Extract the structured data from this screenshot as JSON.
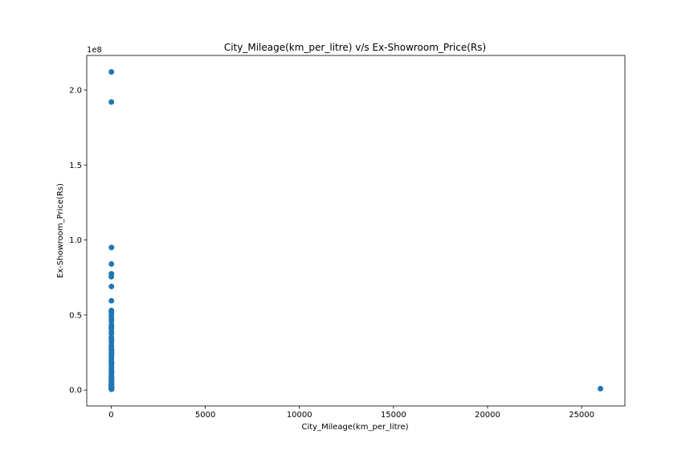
{
  "chart_data": {
    "type": "scatter",
    "title": "City_Mileage(km_per_litre) v/s Ex-Showroom_Price(Rs)",
    "xlabel": "City_Mileage(km_per_litre)",
    "ylabel": "Ex-Showroom_Price(Rs)",
    "y_offset_text": "1e8",
    "xlim": [
      -1300,
      27300
    ],
    "ylim": [
      -10600000,
      223000000
    ],
    "xticks": [
      0,
      5000,
      10000,
      15000,
      20000,
      25000
    ],
    "xtick_labels": [
      "0",
      "5000",
      "10000",
      "15000",
      "20000",
      "25000"
    ],
    "yticks": [
      0,
      50000000,
      100000000,
      150000000,
      200000000
    ],
    "ytick_labels": [
      "0.0",
      "0.5",
      "1.0",
      "1.5",
      "2.0"
    ],
    "grid": false,
    "legend": "none",
    "marker_color": "#1f77b4",
    "points": {
      "x": [
        10,
        9,
        15,
        12,
        11,
        8,
        14,
        13,
        10,
        9,
        12,
        11,
        15,
        13,
        14,
        12,
        10,
        11,
        12,
        9,
        13,
        14,
        11,
        10,
        12,
        15,
        13,
        11,
        10,
        9,
        12,
        14,
        13,
        11,
        10,
        12,
        9,
        14,
        13,
        12,
        11,
        10,
        9,
        12,
        13,
        14,
        11,
        10,
        12,
        13,
        26000,
        16,
        18,
        20,
        22,
        17,
        19,
        21,
        16,
        18,
        20,
        17,
        19,
        16
      ],
      "y": [
        212000000,
        192000000,
        95000000,
        84000000,
        77500000,
        75500000,
        69000000,
        59500000,
        53000000,
        52500000,
        51500000,
        49500000,
        47500000,
        46000000,
        43500000,
        42000000,
        41000000,
        39000000,
        37500000,
        35000000,
        33500000,
        32000000,
        29500000,
        28000000,
        26500000,
        25000000,
        23500000,
        22000000,
        20500000,
        19000000,
        17500000,
        16000000,
        14500000,
        13000000,
        11500000,
        10000000,
        8500000,
        7500000,
        6500000,
        5500000,
        4500000,
        3800000,
        3000000,
        2500000,
        2000000,
        1500000,
        1200000,
        900000,
        700000,
        500000,
        900000,
        27000000,
        24000000,
        18000000,
        12000000,
        9000000,
        6000000,
        4000000,
        2200000,
        1400000,
        1000000,
        800000,
        600000,
        3000000
      ]
    }
  }
}
